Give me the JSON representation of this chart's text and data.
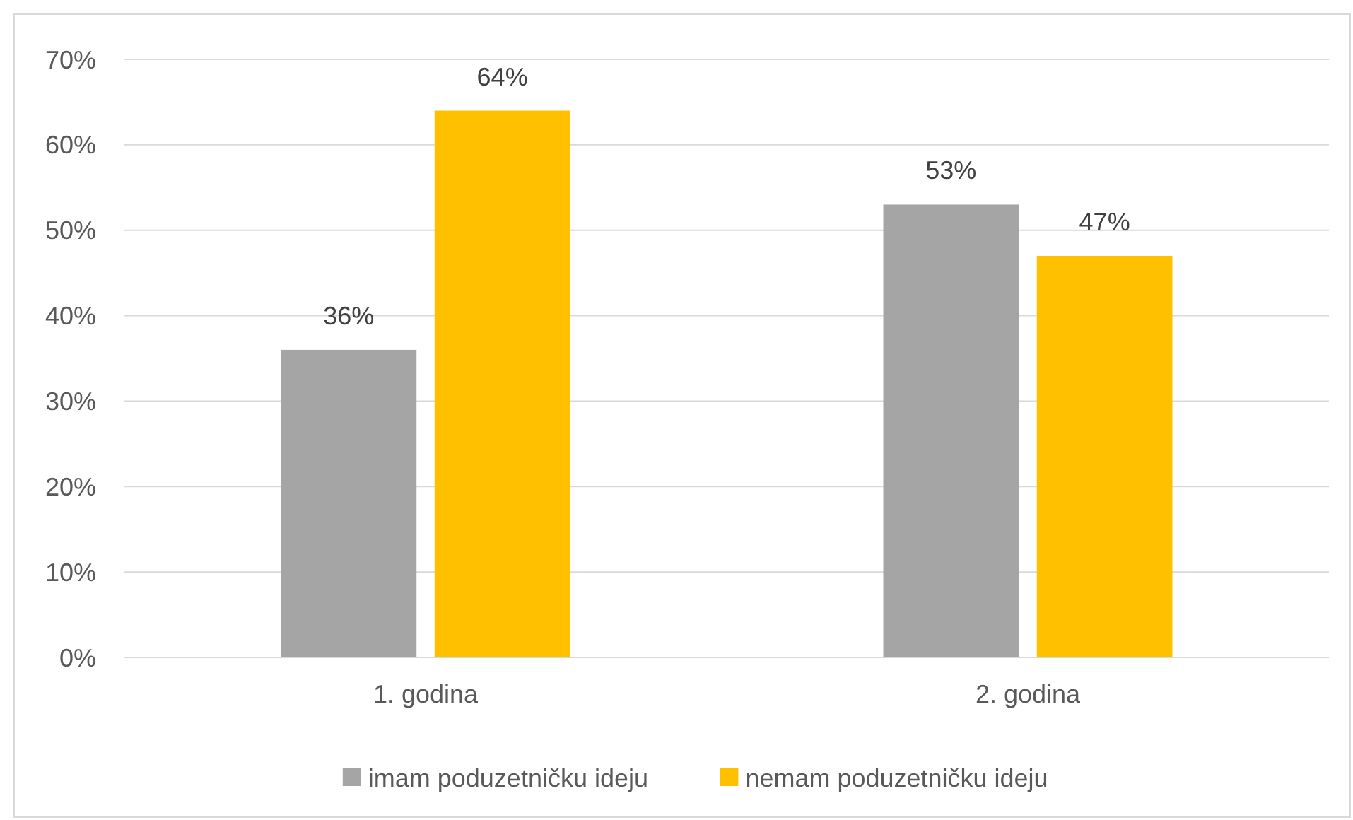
{
  "chart_data": {
    "type": "bar",
    "categories": [
      "1. godina",
      "2. godina"
    ],
    "series": [
      {
        "name": "imam poduzetničku ideju",
        "color": "#a5a5a5",
        "values": [
          36,
          53
        ],
        "value_labels": [
          "36%",
          "53%"
        ]
      },
      {
        "name": "nemam poduzetničku ideju",
        "color": "#ffc000",
        "values": [
          64,
          47
        ],
        "value_labels": [
          "64%",
          "47%"
        ]
      }
    ],
    "ylim": [
      0,
      70
    ],
    "yticks": [
      {
        "value": 0,
        "label": "0%"
      },
      {
        "value": 10,
        "label": "10%"
      },
      {
        "value": 20,
        "label": "20%"
      },
      {
        "value": 30,
        "label": "30%"
      },
      {
        "value": 40,
        "label": "40%"
      },
      {
        "value": 50,
        "label": "50%"
      },
      {
        "value": 60,
        "label": "60%"
      },
      {
        "value": 70,
        "label": "70%"
      }
    ],
    "grid": "y",
    "legend": "bottom"
  }
}
